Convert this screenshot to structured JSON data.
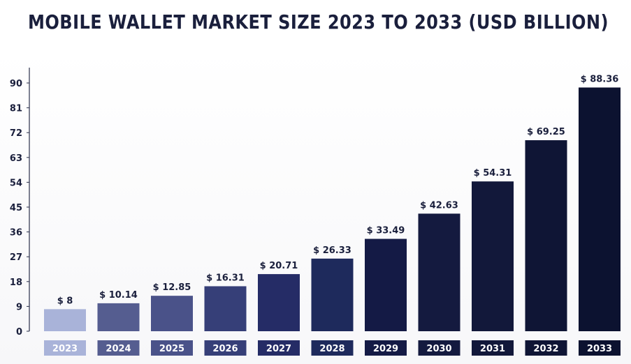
{
  "chart_data": {
    "type": "bar",
    "title": "MOBILE WALLET MARKET SIZE 2023 TO 2033 (USD BILLION)",
    "xlabel": "",
    "ylabel": "",
    "ylim": [
      0,
      90
    ],
    "yticks": [
      0,
      9,
      18,
      27,
      36,
      45,
      54,
      63,
      72,
      81,
      90
    ],
    "categories": [
      "2023",
      "2024",
      "2025",
      "2026",
      "2027",
      "2028",
      "2029",
      "2030",
      "2031",
      "2032",
      "2033"
    ],
    "values": [
      8,
      10.14,
      12.85,
      16.31,
      20.71,
      26.33,
      33.49,
      42.63,
      54.31,
      69.25,
      88.36
    ],
    "value_labels": [
      "$ 8",
      "$ 10.14",
      "$ 12.85",
      "$ 16.31",
      "$ 20.71",
      "$ 26.33",
      "$ 33.49",
      "$ 42.63",
      "$ 54.31",
      "$ 69.25",
      "$ 88.36"
    ],
    "colors": [
      "#a9b3d9",
      "#555d90",
      "#4a5289",
      "#363f78",
      "#252c66",
      "#1e2a5c",
      "#141a45",
      "#141a3f",
      "#12183a",
      "#0f1535",
      "#0c1230"
    ],
    "grid": false,
    "legend": "none"
  }
}
